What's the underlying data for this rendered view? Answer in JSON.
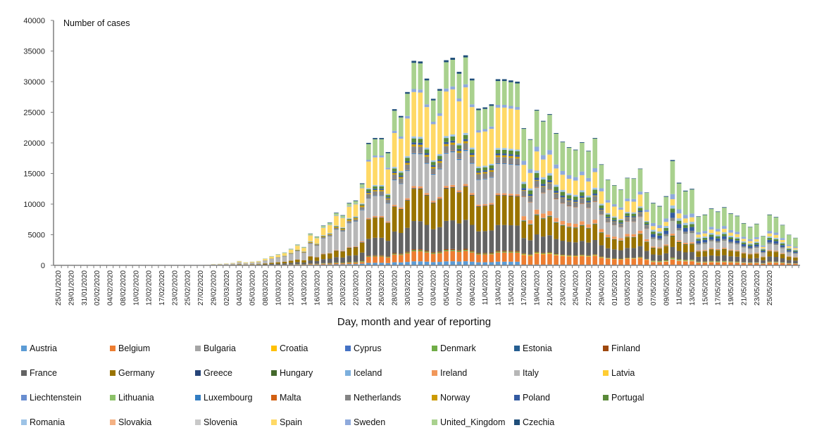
{
  "chart_data": {
    "type": "bar",
    "stacked": true,
    "title": "",
    "ylabel": "Number of cases",
    "xlabel": "Day, month and year of reporting",
    "ylim": [
      0,
      40000
    ],
    "yticks": [
      0,
      5000,
      10000,
      15000,
      20000,
      25000,
      30000,
      35000,
      40000
    ],
    "legend_position": "bottom",
    "grid": false,
    "x_tick_labels": [
      "25/01/2020",
      "29/01/2020",
      "31/01/2020",
      "02/02/2020",
      "04/02/2020",
      "08/02/2020",
      "10/02/2020",
      "12/02/2020",
      "17/02/2020",
      "23/02/2020",
      "25/02/2020",
      "27/02/2020",
      "29/02/2020",
      "02/03/2020",
      "04/03/2020",
      "05/03/2020",
      "08/03/2020",
      "10/03/2020",
      "12/03/2020",
      "14/03/2020",
      "16/03/2020",
      "18/03/2020",
      "20/03/2020",
      "22/03/2020",
      "24/03/2020",
      "26/03/2020",
      "28/03/2020",
      "30/03/2020",
      "01/04/2020",
      "03/04/2020",
      "05/04/2020",
      "07/04/2020",
      "09/04/2020",
      "11/04/2020",
      "13/04/2020",
      "15/04/2020",
      "17/04/2020",
      "19/04/2020",
      "21/04/2020",
      "23/04/2020",
      "25/04/2020",
      "27/04/2020",
      "29/04/2020",
      "01/05/2020",
      "03/05/2020",
      "05/05/2020",
      "07/05/2020",
      "09/05/2020",
      "11/05/2020",
      "13/05/2020",
      "15/05/2020",
      "17/05/2020",
      "19/05/2020",
      "21/05/2020",
      "23/05/2020",
      "25/05/2020"
    ],
    "totals": [
      20,
      10,
      15,
      5,
      10,
      5,
      20,
      10,
      20,
      15,
      10,
      5,
      5,
      10,
      20,
      15,
      5,
      10,
      15,
      5,
      10,
      15,
      40,
      80,
      200,
      250,
      300,
      400,
      700,
      500,
      600,
      700,
      1100,
      1500,
      1800,
      2100,
      2700,
      3400,
      3000,
      5200,
      4700,
      6500,
      7000,
      8600,
      8200,
      10200,
      10600,
      13400,
      20000,
      20800,
      20800,
      18500,
      25500,
      24400,
      28300,
      33400,
      33300,
      30500,
      27200,
      28800,
      33500,
      33900,
      31600,
      34300,
      30500,
      25600,
      25800,
      26300,
      30400,
      30400,
      30200,
      30000,
      22400,
      20600,
      25400,
      23600,
      24700,
      21600,
      20200,
      19300,
      18900,
      20100,
      18700,
      20800,
      16500,
      14000,
      13100,
      12400,
      14300,
      14200,
      15800,
      11900,
      10200,
      9700,
      11300,
      17200,
      13500,
      12200,
      12500,
      8000,
      8300,
      9300,
      8800,
      9500,
      8500,
      8100,
      6900,
      6300,
      6800,
      4800,
      8300,
      7900,
      6600,
      5000,
      4500
    ],
    "series": [
      {
        "name": "Austria",
        "color": "#5B9BD5"
      },
      {
        "name": "Belgium",
        "color": "#ED7D31"
      },
      {
        "name": "Bulgaria",
        "color": "#A5A5A5"
      },
      {
        "name": "Croatia",
        "color": "#FFC000"
      },
      {
        "name": "Cyprus",
        "color": "#4472C4"
      },
      {
        "name": "Denmark",
        "color": "#70AD47"
      },
      {
        "name": "Estonia",
        "color": "#255E91"
      },
      {
        "name": "Finland",
        "color": "#9E480E"
      },
      {
        "name": "France",
        "color": "#636363"
      },
      {
        "name": "Germany",
        "color": "#997300"
      },
      {
        "name": "Greece",
        "color": "#264478"
      },
      {
        "name": "Hungary",
        "color": "#43682B"
      },
      {
        "name": "Iceland",
        "color": "#7CAFDD"
      },
      {
        "name": "Ireland",
        "color": "#F1975A"
      },
      {
        "name": "Italy",
        "color": "#B7B7B7"
      },
      {
        "name": "Latvia",
        "color": "#FFCD33"
      },
      {
        "name": "Liechtenstein",
        "color": "#698ED0"
      },
      {
        "name": "Lithuania",
        "color": "#8CC168"
      },
      {
        "name": "Luxembourg",
        "color": "#327DC2"
      },
      {
        "name": "Malta",
        "color": "#D26012"
      },
      {
        "name": "Netherlands",
        "color": "#848484"
      },
      {
        "name": "Norway",
        "color": "#CC9A00"
      },
      {
        "name": "Poland",
        "color": "#335AA1"
      },
      {
        "name": "Portugal",
        "color": "#5A8A39"
      },
      {
        "name": "Romania",
        "color": "#9DC3E6"
      },
      {
        "name": "Slovakia",
        "color": "#F4B183"
      },
      {
        "name": "Slovenia",
        "color": "#C9C9C9"
      },
      {
        "name": "Spain",
        "color": "#FFD966"
      },
      {
        "name": "Sweden",
        "color": "#8FAADC"
      },
      {
        "name": "United_Kingdom",
        "color": "#A9D18E"
      },
      {
        "name": "Czechia",
        "color": "#1F4E79"
      }
    ]
  }
}
